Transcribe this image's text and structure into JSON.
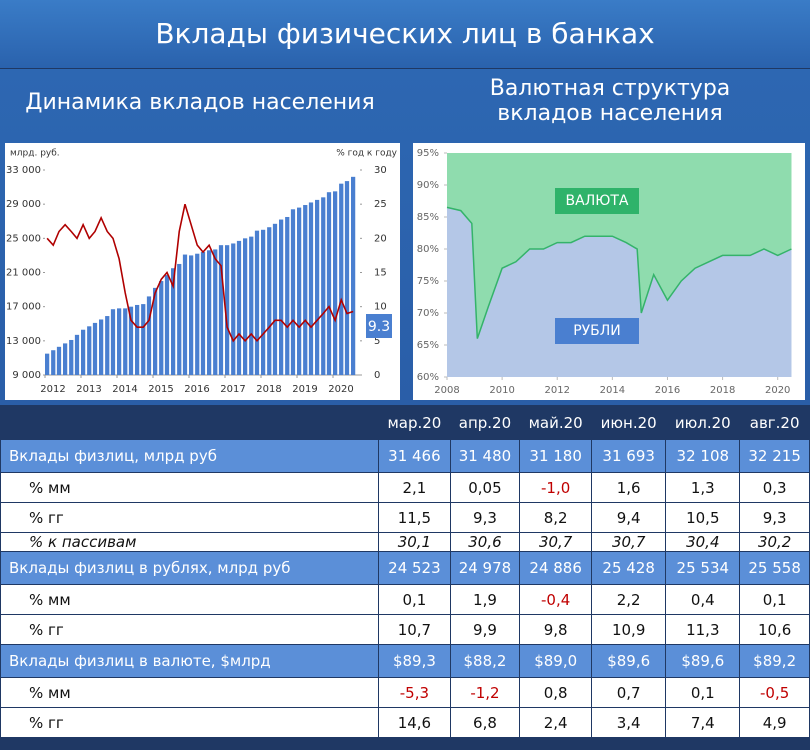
{
  "header": {
    "title": "Вклады физических лиц в банках",
    "left_subtitle": "Динамика вкладов населения",
    "right_subtitle": [
      "Валютная структура",
      "вкладов населения"
    ]
  },
  "chart_data": [
    {
      "type": "bar",
      "ylabel": "млрд. руб.",
      "y2label": "% год к году",
      "x": [
        2012,
        2012.17,
        2012.33,
        2012.5,
        2012.67,
        2012.83,
        2013,
        2013.17,
        2013.33,
        2013.5,
        2013.67,
        2013.83,
        2014,
        2014.17,
        2014.33,
        2014.5,
        2014.67,
        2014.83,
        2015,
        2015.17,
        2015.33,
        2015.5,
        2015.67,
        2015.83,
        2016,
        2016.17,
        2016.33,
        2016.5,
        2016.67,
        2016.83,
        2017,
        2017.17,
        2017.33,
        2017.5,
        2017.67,
        2017.83,
        2018,
        2018.17,
        2018.33,
        2018.5,
        2018.67,
        2018.83,
        2019,
        2019.17,
        2019.33,
        2019.5,
        2019.67,
        2019.83,
        2020,
        2020.17,
        2020.33,
        2020.5
      ],
      "xlim": [
        2012,
        2020.75
      ],
      "xticks": [
        2012,
        2013,
        2014,
        2015,
        2016,
        2017,
        2018,
        2019,
        2020
      ],
      "ylim": [
        9000,
        33000
      ],
      "yticks": [
        {
          "value": 9000,
          "label": "9 000"
        },
        {
          "value": 13000,
          "label": "13 000"
        },
        {
          "value": 17000,
          "label": "17 000"
        },
        {
          "value": 21000,
          "label": "21 000"
        },
        {
          "value": 25000,
          "label": "25 000"
        },
        {
          "value": 29000,
          "label": "29 000"
        },
        {
          "value": 33000,
          "label": "33 000"
        }
      ],
      "y2lim": [
        0,
        30
      ],
      "y2ticks": [
        0,
        5,
        10,
        15,
        20,
        25,
        30
      ],
      "series": [
        {
          "color": "#4a7fd0",
          "values": [
            11500,
            11900,
            12300,
            12700,
            13100,
            13700,
            14300,
            14700,
            15100,
            15500,
            15900,
            16700,
            16800,
            16800,
            17000,
            17200,
            17300,
            18200,
            19200,
            20000,
            20700,
            21500,
            22000,
            23100,
            23000,
            23200,
            23400,
            23600,
            23700,
            24200,
            24200,
            24400,
            24700,
            25000,
            25200,
            25900,
            26000,
            26300,
            26700,
            27200,
            27500,
            28400,
            28600,
            28900,
            29200,
            29500,
            29800,
            30400,
            30500,
            31400,
            31700,
            32200
          ]
        },
        {
          "type": "line",
          "axis": "y2",
          "color": "#b00000",
          "values": [
            20,
            19,
            21,
            22,
            21,
            20,
            22,
            20,
            21,
            23,
            21,
            20,
            17,
            12,
            8,
            7,
            7,
            8,
            12,
            14,
            15,
            13,
            21,
            25,
            22,
            19,
            18,
            19,
            17,
            16,
            7,
            5,
            6,
            5,
            6,
            5,
            6,
            7,
            8,
            8,
            7,
            8,
            7,
            8,
            7,
            8,
            9,
            10,
            8,
            11,
            9,
            9.3
          ]
        }
      ],
      "annotation": "9.3"
    },
    {
      "type": "area",
      "x": [
        2008,
        2008.5,
        2008.9,
        2009.1,
        2009.5,
        2010,
        2010.5,
        2011,
        2011.5,
        2012,
        2012.5,
        2013,
        2013.5,
        2014,
        2014.5,
        2014.9,
        2015.05,
        2015.5,
        2016,
        2016.5,
        2017,
        2017.5,
        2018,
        2018.5,
        2019,
        2019.5,
        2020,
        2020.5
      ],
      "xlim": [
        2008,
        2020.7
      ],
      "xticks": [
        2008,
        2010,
        2012,
        2014,
        2016,
        2018,
        2020
      ],
      "ylim": [
        60,
        95
      ],
      "yticks": [
        {
          "value": 60,
          "label": "60%"
        },
        {
          "value": 65,
          "label": "65%"
        },
        {
          "value": 70,
          "label": "70%"
        },
        {
          "value": 75,
          "label": "75%"
        },
        {
          "value": 80,
          "label": "80%"
        },
        {
          "value": 85,
          "label": "85%"
        },
        {
          "value": 90,
          "label": "90%"
        },
        {
          "value": 95,
          "label": "95%"
        }
      ],
      "series": [
        {
          "name": "РУБЛИ",
          "color": "#b4c7e7",
          "values": [
            86.5,
            86,
            84,
            66,
            71,
            77,
            78,
            80,
            80,
            81,
            81,
            82,
            82,
            82,
            81,
            80,
            70,
            76,
            72,
            75,
            77,
            78,
            79,
            79,
            79,
            80,
            79,
            80
          ]
        }
      ],
      "upper_label": "ВАЛЮТА",
      "upper_color": "#8fdcae"
    }
  ],
  "table": {
    "months": [
      "мар.20",
      "апр.20",
      "май.20",
      "июн.20",
      "июл.20",
      "авг.20"
    ],
    "groups": [
      {
        "label": "Вклады физлиц, млрд руб",
        "values": [
          "31 466",
          "31 480",
          "31 180",
          "31 693",
          "32 108",
          "32 215"
        ],
        "rows": [
          {
            "label": "% мм",
            "values": [
              "2,1",
              "0,05",
              "-1,0",
              "1,6",
              "1,3",
              "0,3"
            ]
          },
          {
            "label": "% гг",
            "values": [
              "11,5",
              "9,3",
              "8,2",
              "9,4",
              "10,5",
              "9,3"
            ]
          },
          {
            "label": "% к пассивам",
            "values": [
              "30,1",
              "30,6",
              "30,7",
              "30,7",
              "30,4",
              "30,2"
            ]
          }
        ]
      },
      {
        "label": "Вклады физлиц в рублях, млрд руб",
        "values": [
          "24 523",
          "24 978",
          "24 886",
          "25 428",
          "25 534",
          "25 558"
        ],
        "rows": [
          {
            "label": "% мм",
            "values": [
              "0,1",
              "1,9",
              "-0,4",
              "2,2",
              "0,4",
              "0,1"
            ]
          },
          {
            "label": "% гг",
            "values": [
              "10,7",
              "9,9",
              "9,8",
              "10,9",
              "11,3",
              "10,6"
            ]
          }
        ]
      },
      {
        "label": "Вклады физлиц в валюте, $млрд",
        "values": [
          "$89,3",
          "$88,2",
          "$89,0",
          "$89,6",
          "$89,6",
          "$89,2"
        ],
        "rows": [
          {
            "label": "% мм",
            "values": [
              "-5,3",
              "-1,2",
              "0,8",
              "0,7",
              "0,1",
              "-0,5"
            ]
          },
          {
            "label": "% гг",
            "values": [
              "14,6",
              "6,8",
              "2,4",
              "3,4",
              "7,4",
              "4,9"
            ]
          }
        ]
      }
    ]
  }
}
